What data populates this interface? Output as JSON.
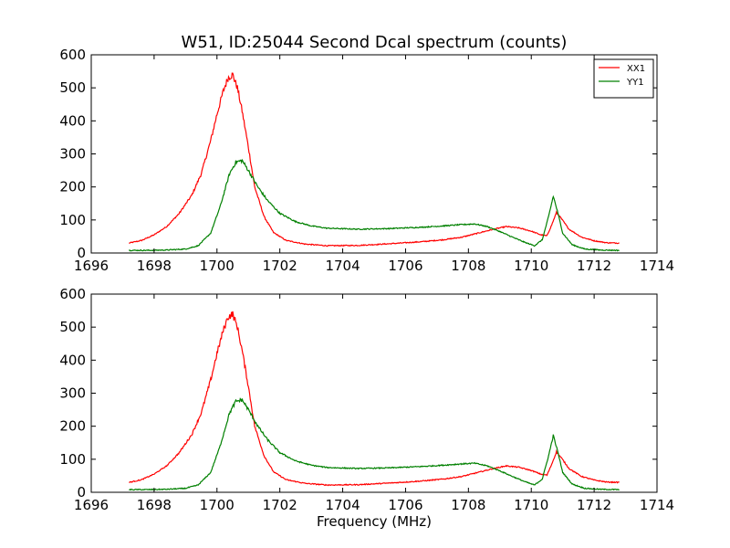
{
  "figure": {
    "title": "W51, ID:25044 Second Dcal spectrum (counts)",
    "xlabel": "Frequency (MHz)"
  },
  "chart_data": [
    {
      "type": "line",
      "title": "W51, ID:25044 Second Dcal spectrum (counts)",
      "xlabel": "",
      "ylabel": "",
      "xlim": [
        1696,
        1714
      ],
      "ylim": [
        0,
        600
      ],
      "xticks": [
        "1696",
        "1698",
        "1700",
        "1702",
        "1704",
        "1706",
        "1708",
        "1710",
        "1712",
        "1714"
      ],
      "yticks": [
        "0",
        "100",
        "200",
        "300",
        "400",
        "500",
        "600"
      ],
      "grid": false,
      "legend": "top-right",
      "series": [
        {
          "name": "XX1",
          "color": "#ff0000",
          "x": [
            1697.2,
            1697.6,
            1698.0,
            1698.4,
            1698.8,
            1699.2,
            1699.5,
            1699.8,
            1700.0,
            1700.2,
            1700.35,
            1700.5,
            1700.65,
            1700.8,
            1701.0,
            1701.2,
            1701.5,
            1701.8,
            1702.2,
            1702.8,
            1703.5,
            1704.5,
            1705.5,
            1706.5,
            1707.2,
            1707.8,
            1708.3,
            1708.8,
            1709.2,
            1709.6,
            1710.0,
            1710.3,
            1710.5,
            1710.65,
            1710.8,
            1710.95,
            1711.2,
            1711.6,
            1712.0,
            1712.4,
            1712.8
          ],
          "values": [
            30,
            38,
            55,
            80,
            120,
            175,
            240,
            340,
            420,
            490,
            530,
            540,
            500,
            430,
            320,
            200,
            110,
            62,
            38,
            27,
            22,
            23,
            28,
            34,
            40,
            48,
            60,
            72,
            80,
            76,
            66,
            55,
            52,
            85,
            122,
            105,
            72,
            48,
            37,
            31,
            30
          ]
        },
        {
          "name": "YY1",
          "color": "#008000",
          "x": [
            1697.2,
            1697.8,
            1698.4,
            1699.0,
            1699.4,
            1699.8,
            1700.1,
            1700.4,
            1700.6,
            1700.8,
            1701.0,
            1701.3,
            1701.6,
            1702.0,
            1702.5,
            1703.0,
            1703.5,
            1704.5,
            1705.5,
            1706.5,
            1707.2,
            1707.8,
            1708.2,
            1708.6,
            1709.0,
            1709.4,
            1709.8,
            1710.1,
            1710.35,
            1710.55,
            1710.7,
            1710.85,
            1711.0,
            1711.3,
            1711.7,
            1712.2,
            1712.8
          ],
          "values": [
            8,
            8,
            9,
            12,
            22,
            60,
            140,
            240,
            275,
            280,
            250,
            200,
            160,
            120,
            95,
            82,
            75,
            72,
            74,
            78,
            82,
            86,
            88,
            80,
            65,
            48,
            32,
            22,
            40,
            110,
            172,
            120,
            60,
            25,
            12,
            9,
            8
          ]
        }
      ]
    },
    {
      "type": "line",
      "title": "",
      "xlabel": "Frequency (MHz)",
      "ylabel": "",
      "xlim": [
        1696,
        1714
      ],
      "ylim": [
        0,
        600
      ],
      "xticks": [
        "1696",
        "1698",
        "1700",
        "1702",
        "1704",
        "1706",
        "1708",
        "1710",
        "1712",
        "1714"
      ],
      "yticks": [
        "0",
        "100",
        "200",
        "300",
        "400",
        "500",
        "600"
      ],
      "grid": false,
      "series": [
        {
          "color": "#ff0000",
          "x": [
            1697.2,
            1697.6,
            1698.0,
            1698.4,
            1698.8,
            1699.2,
            1699.5,
            1699.8,
            1700.0,
            1700.2,
            1700.35,
            1700.5,
            1700.65,
            1700.8,
            1701.0,
            1701.2,
            1701.5,
            1701.8,
            1702.2,
            1702.8,
            1703.5,
            1704.5,
            1705.5,
            1706.5,
            1707.2,
            1707.8,
            1708.3,
            1708.8,
            1709.2,
            1709.6,
            1710.0,
            1710.3,
            1710.5,
            1710.65,
            1710.8,
            1710.95,
            1711.2,
            1711.6,
            1712.0,
            1712.4,
            1712.8
          ],
          "values": [
            30,
            38,
            55,
            80,
            120,
            175,
            240,
            340,
            420,
            490,
            530,
            540,
            500,
            430,
            320,
            200,
            110,
            62,
            38,
            27,
            22,
            23,
            28,
            34,
            40,
            48,
            60,
            72,
            80,
            76,
            66,
            55,
            52,
            85,
            122,
            105,
            72,
            48,
            37,
            31,
            30
          ]
        },
        {
          "color": "#008000",
          "x": [
            1697.2,
            1697.8,
            1698.4,
            1699.0,
            1699.4,
            1699.8,
            1700.1,
            1700.4,
            1700.6,
            1700.8,
            1701.0,
            1701.3,
            1701.6,
            1702.0,
            1702.5,
            1703.0,
            1703.5,
            1704.5,
            1705.5,
            1706.5,
            1707.2,
            1707.8,
            1708.2,
            1708.6,
            1709.0,
            1709.4,
            1709.8,
            1710.1,
            1710.35,
            1710.55,
            1710.7,
            1710.85,
            1711.0,
            1711.3,
            1711.7,
            1712.2,
            1712.8
          ],
          "values": [
            8,
            8,
            9,
            12,
            22,
            60,
            140,
            240,
            275,
            280,
            250,
            200,
            160,
            120,
            95,
            82,
            75,
            72,
            74,
            78,
            82,
            86,
            88,
            80,
            65,
            48,
            32,
            22,
            40,
            110,
            172,
            120,
            60,
            25,
            12,
            9,
            8
          ]
        }
      ]
    }
  ]
}
